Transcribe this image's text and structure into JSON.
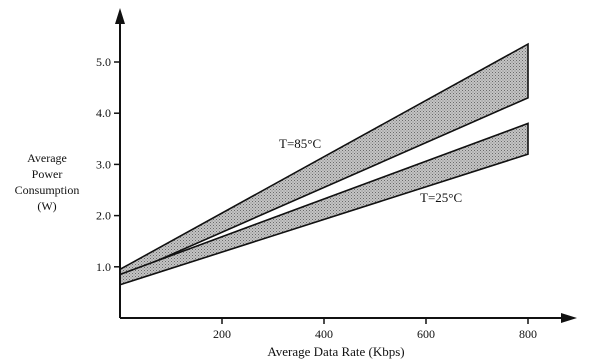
{
  "chart_data": {
    "type": "area",
    "xlabel": "Average Data Rate (Kbps)",
    "ylabel_lines": [
      "Average",
      "Power",
      "Consumption",
      "(W)"
    ],
    "xlim": [
      0,
      880
    ],
    "ylim": [
      0,
      5.8
    ],
    "x_ticks": [
      200,
      400,
      600,
      800
    ],
    "x_tick_labels": [
      "200",
      "400",
      "600",
      "800"
    ],
    "y_ticks": [
      1.0,
      2.0,
      3.0,
      4.0,
      5.0
    ],
    "y_tick_labels": [
      "1.0",
      "2.0",
      "3.0",
      "4.0",
      "5.0"
    ],
    "grid": false,
    "band_fill": "#b4b4b4",
    "series": [
      {
        "name": "T=85°C",
        "x": [
          0,
          800
        ],
        "upper": [
          0.95,
          5.35
        ],
        "lower": [
          0.8,
          4.3
        ]
      },
      {
        "name": "T=25°C",
        "x": [
          0,
          800
        ],
        "upper": [
          0.85,
          3.8
        ],
        "lower": [
          0.65,
          3.2
        ]
      }
    ]
  }
}
